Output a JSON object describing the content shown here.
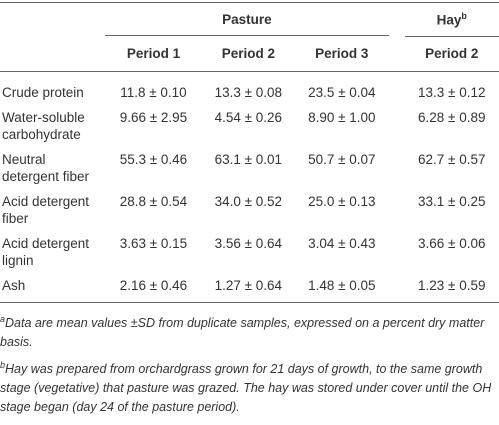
{
  "table": {
    "groups": [
      {
        "label": "Pasture",
        "span": 3
      },
      {
        "label": "Hay",
        "sup": "b",
        "span": 1
      }
    ],
    "columns": [
      "Period 1",
      "Period 2",
      "Period 3",
      "Period 2"
    ],
    "rows": [
      [
        "Crude protein",
        "11.8 ± 0.10",
        "13.3 ± 0.08",
        "23.5 ± 0.04",
        "13.3 ± 0.12"
      ],
      [
        "Water-soluble carbohydrate",
        "9.66 ± 2.95",
        "4.54 ± 0.26",
        "8.90 ± 1.00",
        "6.28 ± 0.89"
      ],
      [
        "Neutral detergent fiber",
        "55.3 ± 0.46",
        "63.1 ± 0.01",
        "50.7 ± 0.07",
        "62.7 ± 0.57"
      ],
      [
        "Acid detergent fiber",
        "28.8 ± 0.54",
        "34.0 ± 0.52",
        "25.0 ± 0.13",
        "33.1 ± 0.25"
      ],
      [
        "Acid detergent lignin",
        "3.63 ± 0.15",
        "3.56 ± 0.64",
        "3.04 ± 0.43",
        "3.66 ± 0.06"
      ],
      [
        "Ash",
        "2.16 ± 0.46",
        "1.27 ± 0.64",
        "1.48 ± 0.05",
        "1.23 ± 0.59"
      ]
    ]
  },
  "footnotes": [
    {
      "mark": "a",
      "text": "Data are mean values ±SD from duplicate samples, expressed on a percent dry matter basis."
    },
    {
      "mark": "b",
      "text": "Hay was prepared from orchardgrass grown for 21 days of growth, to the same growth stage (vegetative) that pasture was grazed. The hay was stored under cover until the OH stage began (day 24 of the pasture period)."
    }
  ]
}
